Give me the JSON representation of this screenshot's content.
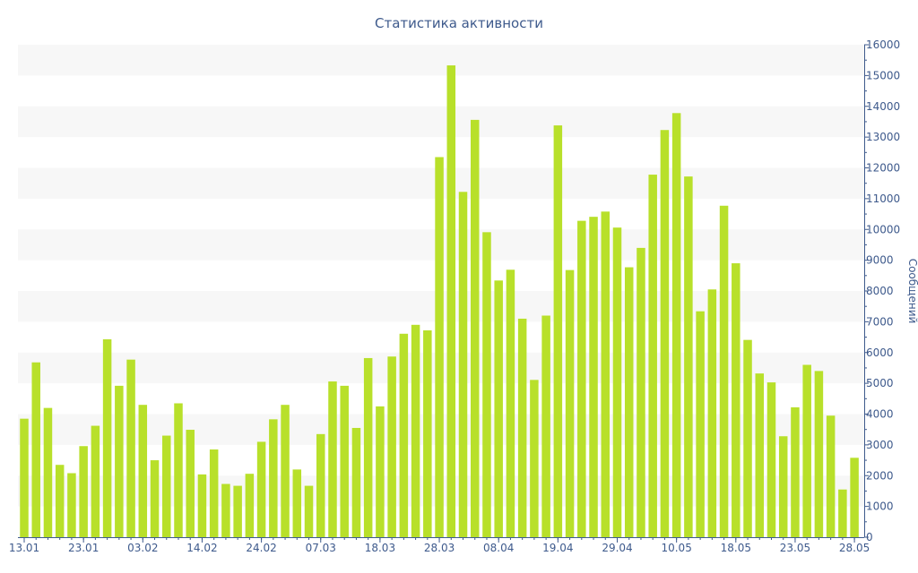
{
  "chart_data": {
    "type": "bar",
    "title": "Статистика активности",
    "ylabel": "Сообщений",
    "xlabel": "",
    "y_axis_position": "right",
    "ylim": [
      0,
      16000
    ],
    "yticks": [
      0,
      1000,
      2000,
      3000,
      4000,
      5000,
      6000,
      7000,
      8000,
      9000,
      10000,
      11000,
      12000,
      13000,
      14000,
      15000,
      16000
    ],
    "x_tick_labels": [
      "13.01",
      "23.01",
      "03.02",
      "14.02",
      "24.02",
      "07.03",
      "18.03",
      "28.03",
      "08.04",
      "19.04",
      "29.04",
      "10.05",
      "18.05",
      "23.05",
      "28.05"
    ],
    "x_tick_bar_index": [
      0,
      5,
      10,
      15,
      20,
      25,
      30,
      35,
      40,
      45,
      50,
      55,
      60,
      65,
      70
    ],
    "bar_color": "#b8e02a",
    "stripe_color": "#f7f7f7",
    "axis_color": "#3e5a8c",
    "grid": "horizontal bands",
    "values": [
      3850,
      5680,
      4200,
      2350,
      2080,
      2960,
      3620,
      6430,
      4920,
      5770,
      4300,
      2500,
      3300,
      4350,
      3490,
      2040,
      2850,
      1730,
      1670,
      2060,
      3100,
      3830,
      4300,
      2200,
      1670,
      3350,
      5060,
      4920,
      3550,
      5820,
      4250,
      5870,
      6610,
      6900,
      6720,
      12350,
      15330,
      11220,
      13560,
      9910,
      8340,
      8690,
      7100,
      5110,
      7200,
      13380,
      8680,
      10280,
      10410,
      10580,
      10060,
      8770,
      9400,
      11780,
      13230,
      13780,
      11720,
      7340,
      8050,
      10770,
      8900,
      6410,
      5320,
      5030,
      3280,
      4220,
      5600,
      5400,
      3950,
      1550,
      2580
    ]
  }
}
